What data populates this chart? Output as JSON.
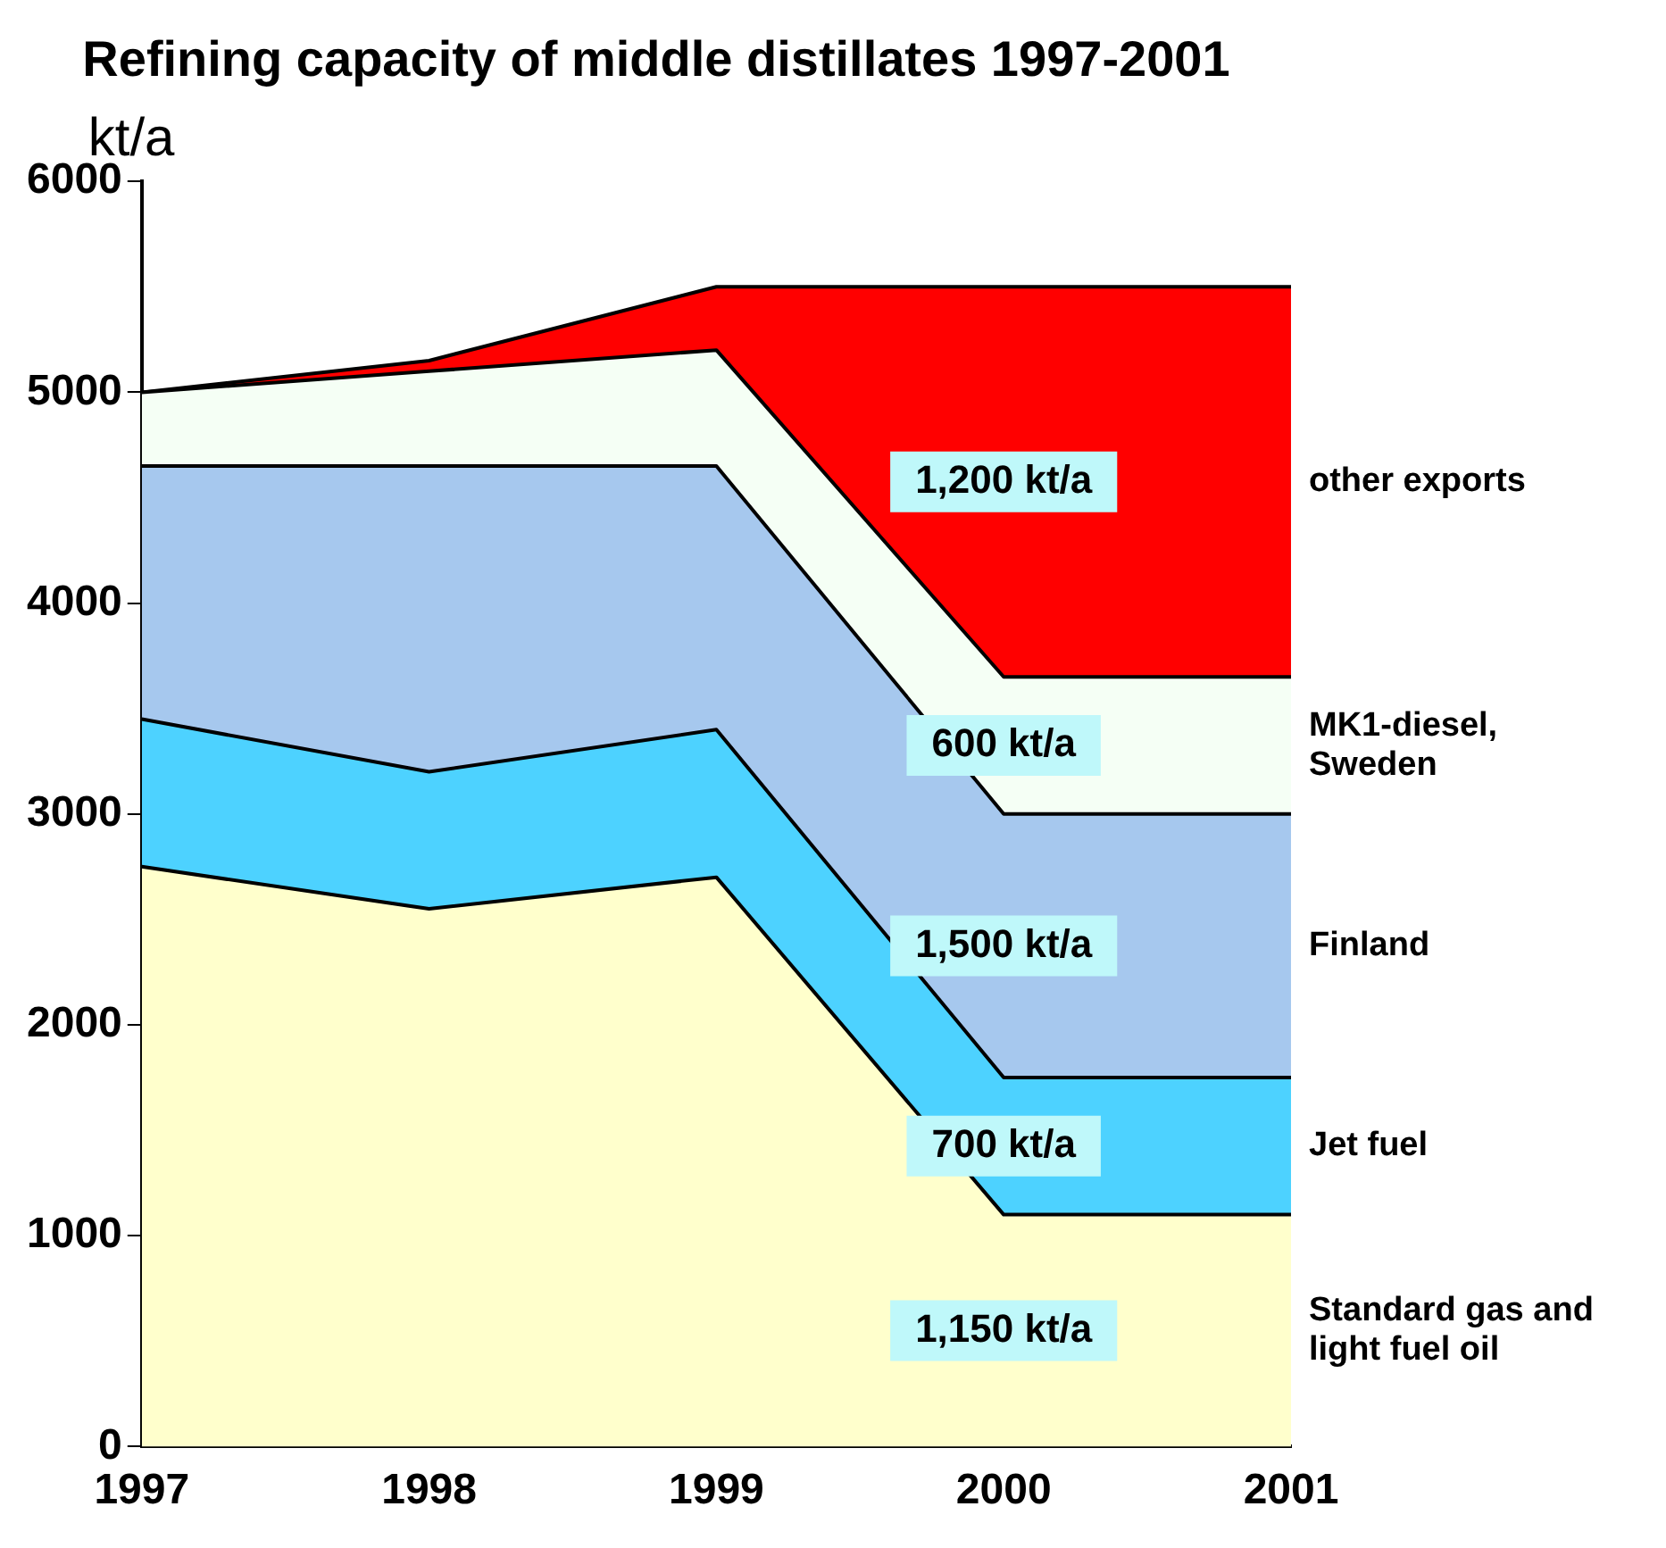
{
  "chart_data": {
    "type": "area",
    "title": "Refining capacity of middle distillates 1997-2001",
    "ylabel": "kt/a",
    "stacked": true,
    "x": [
      1997,
      1998,
      1999,
      2000,
      2001
    ],
    "xlim": [
      1997,
      2001
    ],
    "xticks": [
      1997,
      1998,
      1999,
      2000,
      2001
    ],
    "ylim": [
      0,
      6000
    ],
    "yticks": [
      0,
      1000,
      2000,
      3000,
      4000,
      5000,
      6000
    ],
    "grid": false,
    "legend": false,
    "series": [
      {
        "name": "Standard gas and light fuel oil",
        "color": "#ffffcc",
        "values": [
          2750,
          2550,
          2700,
          1100,
          1100
        ]
      },
      {
        "name": "Jet fuel",
        "color": "#4dd2ff",
        "values": [
          700,
          650,
          700,
          650,
          650
        ]
      },
      {
        "name": "Finland",
        "color": "#a6c8ee",
        "values": [
          1200,
          1450,
          1250,
          1250,
          1250
        ]
      },
      {
        "name": "MK1-diesel, Sweden",
        "color": "#f5fff5",
        "values": [
          350,
          450,
          550,
          650,
          650
        ]
      },
      {
        "name": "other exports",
        "color": "#ff0000",
        "values": [
          0,
          50,
          300,
          1850,
          1850
        ]
      }
    ],
    "annotations": [
      "1,200 kt/a",
      "600 kt/a",
      "1,500 kt/a",
      "700 kt/a",
      "1,150 kt/a"
    ]
  }
}
